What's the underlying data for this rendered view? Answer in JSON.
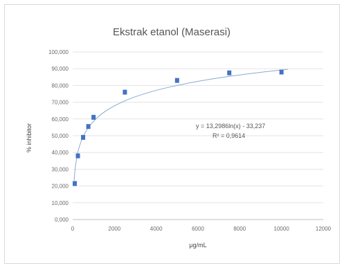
{
  "chart_data": {
    "type": "scatter",
    "title": "Ekstrak etanol (Maserasi)",
    "xlabel": "μg/mL",
    "ylabel": "% inhibitor",
    "xlim": [
      0,
      12000
    ],
    "ylim": [
      0,
      100
    ],
    "x_ticks": [
      "0",
      "2000",
      "4000",
      "6000",
      "8000",
      "10000",
      "12000"
    ],
    "y_ticks": [
      "0,000",
      "10,000",
      "20,000",
      "30,000",
      "40,000",
      "50,000",
      "60,000",
      "70,000",
      "80,000",
      "90,000",
      "100,000"
    ],
    "grid": "horizontal",
    "point_color": "#4472c4",
    "trend_color": "#8aaad0",
    "series": [
      {
        "points": [
          {
            "x": 100,
            "y": 21.5
          },
          {
            "x": 250,
            "y": 38.0
          },
          {
            "x": 500,
            "y": 49.0
          },
          {
            "x": 750,
            "y": 55.5
          },
          {
            "x": 1000,
            "y": 61.0
          },
          {
            "x": 2500,
            "y": 76.0
          },
          {
            "x": 5000,
            "y": 83.0
          },
          {
            "x": 7500,
            "y": 87.5
          },
          {
            "x": 10000,
            "y": 88.0
          }
        ]
      }
    ],
    "trendline": {
      "type": "logarithmic",
      "slope": 13.2986,
      "intercept": -33.237,
      "equation": "y = 13,2986ln(x) - 33,237",
      "r_squared": "R² = 0,9614"
    }
  }
}
